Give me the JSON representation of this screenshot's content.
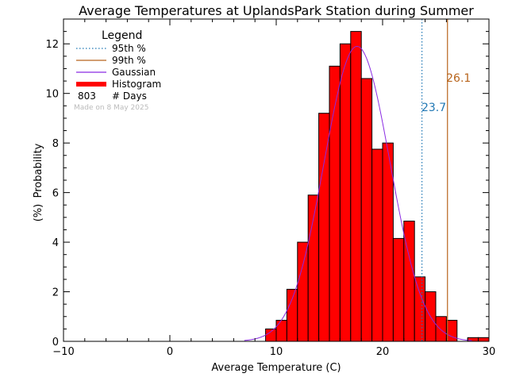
{
  "chart_data": {
    "type": "bar",
    "title": "Average Temperatures at UplandsPark Station during Summer",
    "xlabel": "Average Temperature (C)",
    "ylabel_line1": "Probability",
    "ylabel_line2": "(%)",
    "xlim": [
      -10,
      30
    ],
    "ylim": [
      0,
      13
    ],
    "xticks": [
      -10,
      0,
      10,
      20,
      30
    ],
    "yticks": [
      0,
      2,
      4,
      6,
      8,
      10,
      12
    ],
    "bin_width": 1,
    "histogram": [
      {
        "x": 9,
        "value": 0.5
      },
      {
        "x": 10,
        "value": 0.85
      },
      {
        "x": 11,
        "value": 2.1
      },
      {
        "x": 12,
        "value": 4.0
      },
      {
        "x": 13,
        "value": 5.9
      },
      {
        "x": 14,
        "value": 9.2
      },
      {
        "x": 15,
        "value": 11.1
      },
      {
        "x": 16,
        "value": 12.0
      },
      {
        "x": 17,
        "value": 12.5
      },
      {
        "x": 18,
        "value": 10.6
      },
      {
        "x": 19,
        "value": 7.75
      },
      {
        "x": 20,
        "value": 8.0
      },
      {
        "x": 21,
        "value": 4.15
      },
      {
        "x": 22,
        "value": 4.85
      },
      {
        "x": 23,
        "value": 2.6
      },
      {
        "x": 24,
        "value": 2.0
      },
      {
        "x": 25,
        "value": 1.0
      },
      {
        "x": 26,
        "value": 0.85
      },
      {
        "x": 27,
        "value": 0.0
      },
      {
        "x": 28,
        "value": 0.15
      },
      {
        "x": 29,
        "value": 0.15
      }
    ],
    "gaussian": {
      "mean": 17.6,
      "sigma": 3.1,
      "peak": 11.9
    },
    "percentile_95": 23.7,
    "percentile_99": 26.1,
    "percentile_95_label": "23.7",
    "percentile_99_label": "26.1",
    "legend": {
      "title": "Legend",
      "placement": "top-left",
      "items": [
        {
          "label": "95th %",
          "style": "dotted",
          "color": "#1f77b4"
        },
        {
          "label": "99th %",
          "style": "solid",
          "color": "#b8651d"
        },
        {
          "label": "Gaussian",
          "style": "solid",
          "color": "#8a2be2"
        },
        {
          "label": "Histogram",
          "style": "thick",
          "color": "#ff0000"
        }
      ],
      "days_count": "803",
      "days_label": "# Days"
    },
    "made_on": "Made on 8 May 2025",
    "colors": {
      "histogram_fill": "#ff0000",
      "histogram_edge": "#000000",
      "gaussian": "#8a2be2",
      "p95": "#1f77b4",
      "p99": "#b8651d",
      "made_on": "#bbbbbb"
    }
  }
}
